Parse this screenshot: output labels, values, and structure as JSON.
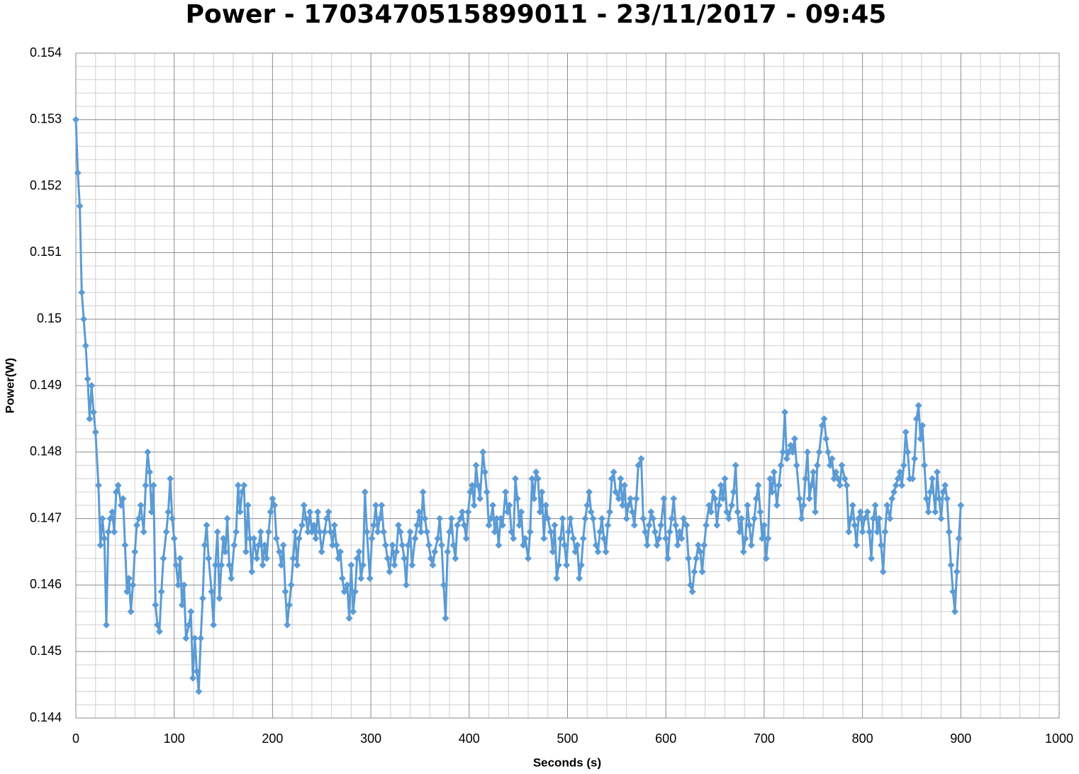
{
  "chart_data": {
    "type": "line",
    "title": "Power - 1703470515899011 - 23/11/2017 - 09:45",
    "x_label": "Seconds (s)",
    "y_label": "Power(W)",
    "xlim": [
      0,
      1000
    ],
    "xticks": [
      0,
      100,
      200,
      300,
      400,
      500,
      600,
      700,
      800,
      900,
      1000
    ],
    "ylim": [
      0.144,
      0.154
    ],
    "yticks": [
      0.144,
      0.145,
      0.146,
      0.147,
      0.148,
      0.149,
      0.15,
      0.151,
      0.152,
      0.153,
      0.154
    ],
    "grid": true,
    "minor_grid": true,
    "marker": "diamond",
    "x": [
      0,
      2,
      4,
      6,
      8,
      10,
      12,
      14,
      16,
      18,
      20,
      23,
      25,
      27,
      29,
      31,
      33,
      35,
      37,
      39,
      41,
      43,
      46,
      48,
      50,
      52,
      54,
      56,
      58,
      60,
      62,
      64,
      66,
      69,
      71,
      73,
      75,
      77,
      79,
      81,
      83,
      85,
      87,
      89,
      92,
      94,
      96,
      98,
      100,
      102,
      104,
      106,
      108,
      110,
      112,
      115,
      117,
      119,
      121,
      123,
      125,
      127,
      129,
      131,
      133,
      135,
      138,
      140,
      142,
      144,
      146,
      148,
      150,
      152,
      154,
      156,
      158,
      161,
      163,
      165,
      167,
      169,
      171,
      173,
      175,
      177,
      179,
      181,
      184,
      186,
      188,
      190,
      192,
      194,
      196,
      198,
      200,
      202,
      204,
      207,
      209,
      211,
      213,
      215,
      217,
      219,
      221,
      223,
      225,
      227,
      230,
      232,
      234,
      236,
      238,
      240,
      242,
      244,
      246,
      248,
      250,
      253,
      255,
      257,
      259,
      261,
      263,
      265,
      267,
      269,
      271,
      273,
      276,
      278,
      280,
      282,
      284,
      286,
      288,
      290,
      292,
      294,
      296,
      299,
      301,
      303,
      305,
      307,
      309,
      311,
      313,
      315,
      317,
      319,
      322,
      324,
      326,
      328,
      330,
      332,
      334,
      336,
      338,
      340,
      342,
      345,
      347,
      349,
      351,
      353,
      355,
      357,
      359,
      361,
      363,
      365,
      368,
      370,
      372,
      374,
      376,
      378,
      380,
      382,
      384,
      386,
      388,
      391,
      393,
      395,
      397,
      399,
      401,
      403,
      405,
      407,
      409,
      411,
      414,
      416,
      418,
      420,
      422,
      424,
      426,
      428,
      430,
      432,
      434,
      437,
      439,
      441,
      443,
      445,
      447,
      449,
      451,
      453,
      455,
      457,
      460,
      462,
      464,
      466,
      468,
      470,
      472,
      474,
      476,
      478,
      480,
      483,
      485,
      487,
      489,
      491,
      493,
      495,
      497,
      499,
      501,
      503,
      506,
      508,
      510,
      512,
      514,
      516,
      518,
      520,
      522,
      524,
      526,
      529,
      531,
      533,
      535,
      537,
      539,
      541,
      543,
      545,
      547,
      549,
      552,
      554,
      556,
      558,
      560,
      562,
      564,
      566,
      568,
      570,
      572,
      575,
      577,
      579,
      581,
      583,
      585,
      587,
      589,
      591,
      593,
      595,
      598,
      600,
      602,
      604,
      606,
      608,
      610,
      612,
      614,
      616,
      618,
      621,
      623,
      625,
      627,
      629,
      631,
      633,
      635,
      637,
      639,
      641,
      644,
      646,
      648,
      650,
      652,
      654,
      656,
      658,
      660,
      662,
      664,
      667,
      669,
      671,
      673,
      675,
      677,
      679,
      681,
      683,
      685,
      687,
      690,
      692,
      694,
      696,
      698,
      700,
      702,
      704,
      706,
      708,
      710,
      713,
      715,
      717,
      719,
      721,
      723,
      725,
      727,
      729,
      731,
      733,
      736,
      738,
      740,
      742,
      744,
      746,
      748,
      750,
      752,
      754,
      756,
      759,
      761,
      763,
      765,
      767,
      769,
      771,
      773,
      775,
      777,
      779,
      782,
      784,
      786,
      788,
      790,
      792,
      794,
      796,
      798,
      800,
      802,
      805,
      807,
      809,
      811,
      813,
      815,
      817,
      819,
      821,
      823,
      825,
      828,
      830,
      832,
      834,
      836,
      838,
      840,
      842,
      844,
      846,
      848,
      851,
      853,
      855,
      857,
      859,
      861,
      863,
      865,
      867,
      869,
      871,
      874,
      876,
      878,
      880,
      882,
      884,
      886,
      888,
      890,
      892,
      894,
      896,
      898,
      900
    ],
    "series": [
      {
        "name": "Power",
        "color": "#5b9bd5",
        "values": [
          0.153,
          0.1522,
          0.1517,
          0.1504,
          0.15,
          0.1496,
          0.1491,
          0.1485,
          0.149,
          0.1486,
          0.1483,
          0.1475,
          0.1466,
          0.147,
          0.1467,
          0.1454,
          0.1468,
          0.147,
          0.1471,
          0.1468,
          0.1474,
          0.1475,
          0.1472,
          0.1473,
          0.1466,
          0.1459,
          0.1461,
          0.1456,
          0.146,
          0.1465,
          0.1469,
          0.147,
          0.1472,
          0.1468,
          0.1475,
          0.148,
          0.1477,
          0.1471,
          0.1475,
          0.1457,
          0.1454,
          0.1453,
          0.1459,
          0.1464,
          0.1468,
          0.1471,
          0.1476,
          0.147,
          0.1467,
          0.1463,
          0.146,
          0.1464,
          0.1457,
          0.146,
          0.1452,
          0.1454,
          0.1456,
          0.1446,
          0.1452,
          0.1447,
          0.1444,
          0.1452,
          0.1458,
          0.1466,
          0.1469,
          0.1464,
          0.1459,
          0.1454,
          0.1463,
          0.1468,
          0.1458,
          0.1463,
          0.1467,
          0.1465,
          0.147,
          0.1463,
          0.1461,
          0.1466,
          0.1468,
          0.1475,
          0.1471,
          0.1474,
          0.1475,
          0.1465,
          0.1472,
          0.1467,
          0.1462,
          0.1467,
          0.1464,
          0.1466,
          0.1468,
          0.1463,
          0.1466,
          0.1464,
          0.1468,
          0.1471,
          0.1473,
          0.1472,
          0.1467,
          0.1465,
          0.1463,
          0.1466,
          0.1459,
          0.1454,
          0.1457,
          0.146,
          0.1464,
          0.1468,
          0.1463,
          0.1467,
          0.1469,
          0.1472,
          0.147,
          0.1468,
          0.1471,
          0.1468,
          0.1469,
          0.1467,
          0.1471,
          0.1468,
          0.1465,
          0.1468,
          0.147,
          0.1471,
          0.1468,
          0.1466,
          0.1469,
          0.1466,
          0.1464,
          0.1465,
          0.1461,
          0.1459,
          0.146,
          0.1455,
          0.1463,
          0.1456,
          0.1459,
          0.1464,
          0.1465,
          0.1461,
          0.1463,
          0.1474,
          0.1468,
          0.1461,
          0.1467,
          0.1469,
          0.1472,
          0.1468,
          0.147,
          0.1472,
          0.1468,
          0.1466,
          0.1464,
          0.1462,
          0.1466,
          0.1463,
          0.1465,
          0.1469,
          0.1468,
          0.1466,
          0.1464,
          0.146,
          0.1466,
          0.1468,
          0.1463,
          0.1467,
          0.1469,
          0.1471,
          0.1468,
          0.1474,
          0.147,
          0.1468,
          0.1466,
          0.1464,
          0.1463,
          0.1465,
          0.1467,
          0.147,
          0.1466,
          0.146,
          0.1455,
          0.1465,
          0.1468,
          0.147,
          0.1466,
          0.1464,
          0.1469,
          0.147,
          0.1471,
          0.1469,
          0.1467,
          0.1471,
          0.1474,
          0.1475,
          0.1472,
          0.1478,
          0.1475,
          0.1473,
          0.148,
          0.1477,
          0.1474,
          0.1469,
          0.147,
          0.1472,
          0.1468,
          0.147,
          0.1466,
          0.147,
          0.1469,
          0.1474,
          0.1471,
          0.1472,
          0.1468,
          0.1467,
          0.1476,
          0.1473,
          0.1469,
          0.1471,
          0.1466,
          0.1467,
          0.1464,
          0.1468,
          0.1476,
          0.1473,
          0.1477,
          0.1476,
          0.1471,
          0.1474,
          0.1467,
          0.1472,
          0.147,
          0.1468,
          0.1465,
          0.1469,
          0.1461,
          0.1463,
          0.1467,
          0.147,
          0.1466,
          0.1463,
          0.1468,
          0.147,
          0.1467,
          0.1465,
          0.1466,
          0.1461,
          0.1463,
          0.1467,
          0.147,
          0.1472,
          0.1474,
          0.1471,
          0.147,
          0.1466,
          0.1465,
          0.1468,
          0.147,
          0.1467,
          0.1465,
          0.1469,
          0.1471,
          0.1476,
          0.1477,
          0.1474,
          0.1473,
          0.1476,
          0.1472,
          0.1475,
          0.147,
          0.1472,
          0.1473,
          0.1471,
          0.1469,
          0.1473,
          0.1478,
          0.1479,
          0.147,
          0.1468,
          0.1466,
          0.1469,
          0.1471,
          0.147,
          0.1468,
          0.1466,
          0.1467,
          0.1469,
          0.1473,
          0.1467,
          0.1464,
          0.1468,
          0.147,
          0.1473,
          0.1469,
          0.1466,
          0.1468,
          0.1467,
          0.147,
          0.1469,
          0.1464,
          0.146,
          0.1459,
          0.1462,
          0.1464,
          0.1466,
          0.1465,
          0.1462,
          0.1466,
          0.1469,
          0.1472,
          0.1471,
          0.1474,
          0.1473,
          0.1469,
          0.1472,
          0.1475,
          0.1473,
          0.1476,
          0.1471,
          0.147,
          0.1472,
          0.1474,
          0.1478,
          0.1471,
          0.1468,
          0.147,
          0.1465,
          0.1467,
          0.1472,
          0.1469,
          0.1466,
          0.147,
          0.1473,
          0.1475,
          0.1471,
          0.1467,
          0.1469,
          0.1464,
          0.1467,
          0.1476,
          0.1474,
          0.1477,
          0.1472,
          0.1475,
          0.1478,
          0.148,
          0.1486,
          0.1479,
          0.148,
          0.1481,
          0.148,
          0.1482,
          0.1478,
          0.1473,
          0.147,
          0.1472,
          0.1476,
          0.148,
          0.1473,
          0.1475,
          0.1477,
          0.1471,
          0.1478,
          0.148,
          0.1484,
          0.1485,
          0.1482,
          0.148,
          0.1478,
          0.1479,
          0.1476,
          0.1477,
          0.1476,
          0.1475,
          0.1478,
          0.1476,
          0.1475,
          0.1468,
          0.147,
          0.1472,
          0.1469,
          0.1466,
          0.147,
          0.1471,
          0.1468,
          0.147,
          0.1471,
          0.1468,
          0.1464,
          0.147,
          0.1472,
          0.1468,
          0.147,
          0.1466,
          0.1462,
          0.1468,
          0.1472,
          0.147,
          0.1473,
          0.1474,
          0.1475,
          0.1476,
          0.1477,
          0.1475,
          0.1478,
          0.1483,
          0.148,
          0.1476,
          0.1476,
          0.1479,
          0.1485,
          0.1487,
          0.1482,
          0.1484,
          0.1478,
          0.1473,
          0.1471,
          0.1474,
          0.1476,
          0.1471,
          0.1477,
          0.1473,
          0.147,
          0.1474,
          0.1475,
          0.1473,
          0.1468,
          0.1463,
          0.1459,
          0.1456,
          0.1462,
          0.1467,
          0.1472
        ]
      }
    ]
  }
}
